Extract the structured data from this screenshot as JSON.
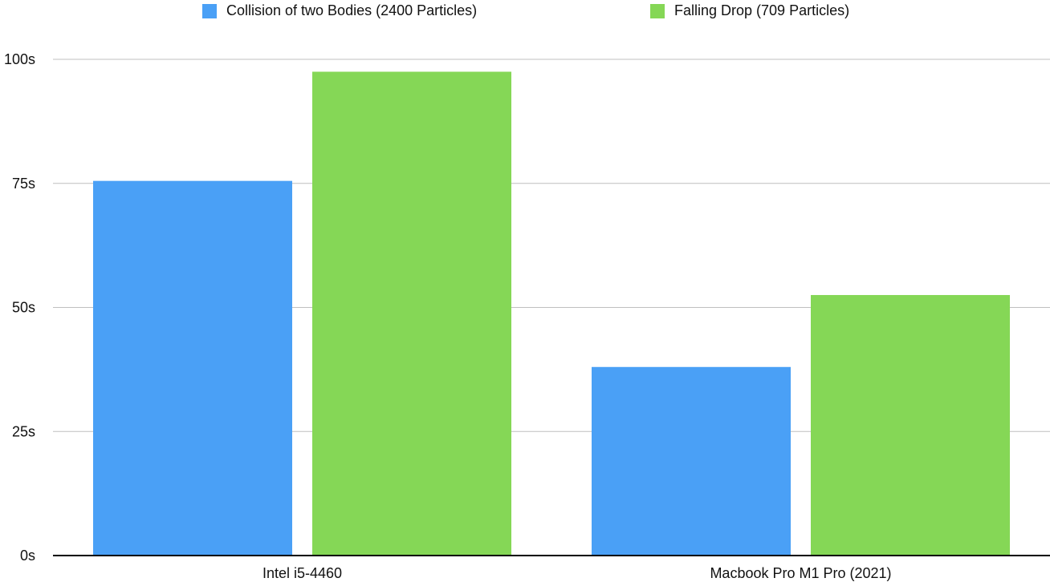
{
  "chart_data": {
    "type": "bar",
    "categories": [
      "Intel i5-4460",
      "Macbook Pro M1 Pro (2021)"
    ],
    "series": [
      {
        "name": "Collision of two Bodies (2400 Particles)",
        "values": [
          75.5,
          38
        ],
        "color": "#4aa0f6"
      },
      {
        "name": "Falling Drop (709 Particles)",
        "values": [
          97.5,
          52.5
        ],
        "color": "#85d756"
      }
    ],
    "ylim": [
      0,
      100
    ],
    "y_ticks": [
      0,
      25,
      50,
      75,
      100
    ],
    "y_tick_labels": [
      "0s",
      "25s",
      "50s",
      "75s",
      "100s"
    ],
    "grid": true,
    "legend_position": "top-center"
  }
}
